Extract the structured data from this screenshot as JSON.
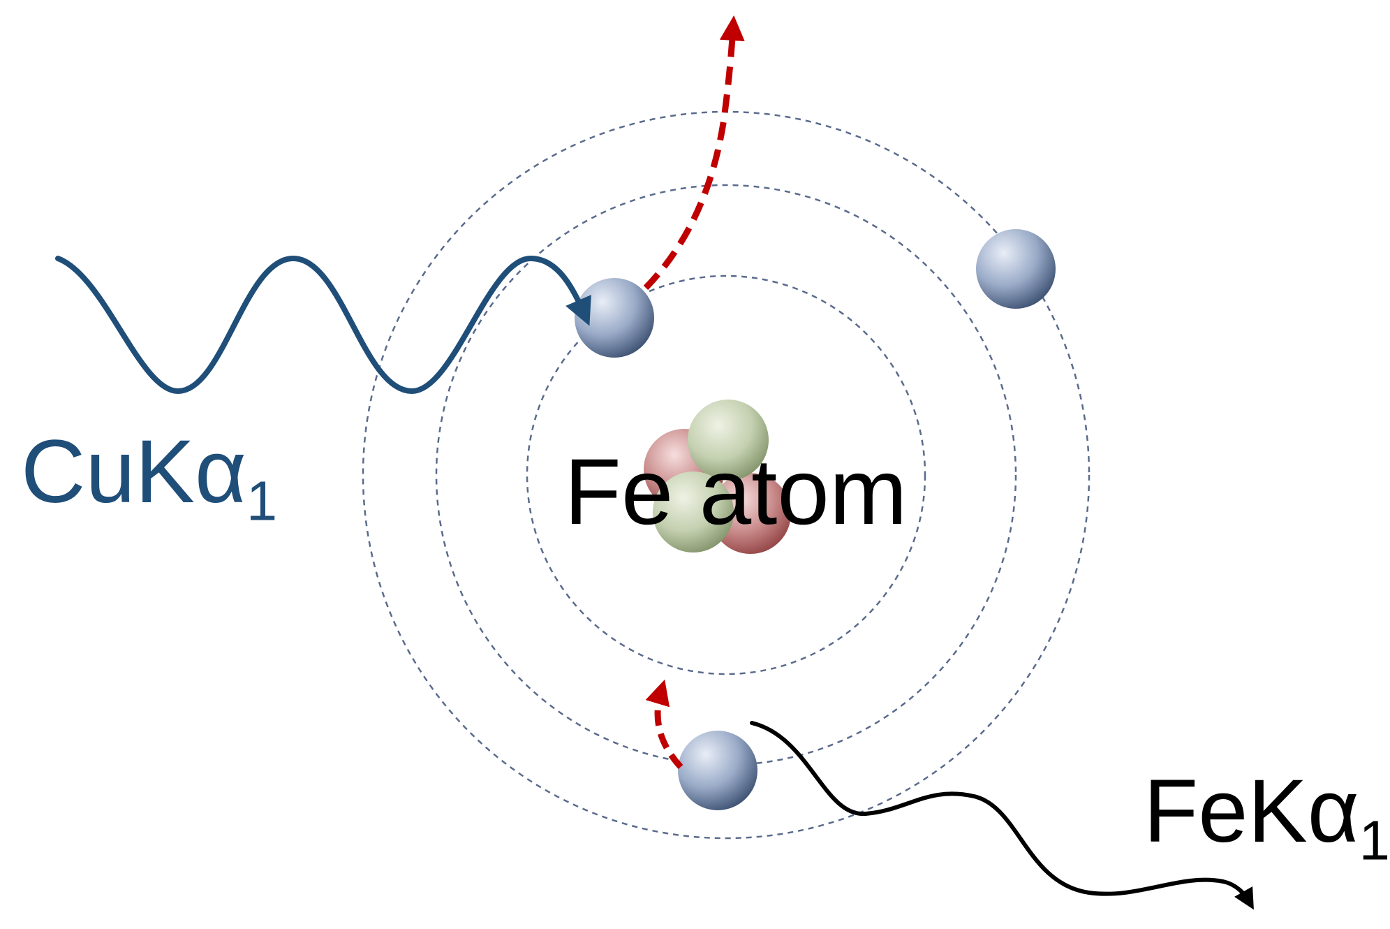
{
  "nucleus": {
    "label": "Fe atom"
  },
  "incoming_photon": {
    "label_main": "CuKα",
    "label_sub": "1",
    "color": "#1f4e79"
  },
  "emitted_photon": {
    "label_main": "FeKα",
    "label_sub": "1",
    "color": "#000000"
  },
  "transition_arrow": {
    "color": "#c00000"
  },
  "orbit_color": "#5a6b8c",
  "electron_color": "#9aabc8",
  "proton_color": "#c98a8a",
  "neutron_color": "#c4d0b0"
}
